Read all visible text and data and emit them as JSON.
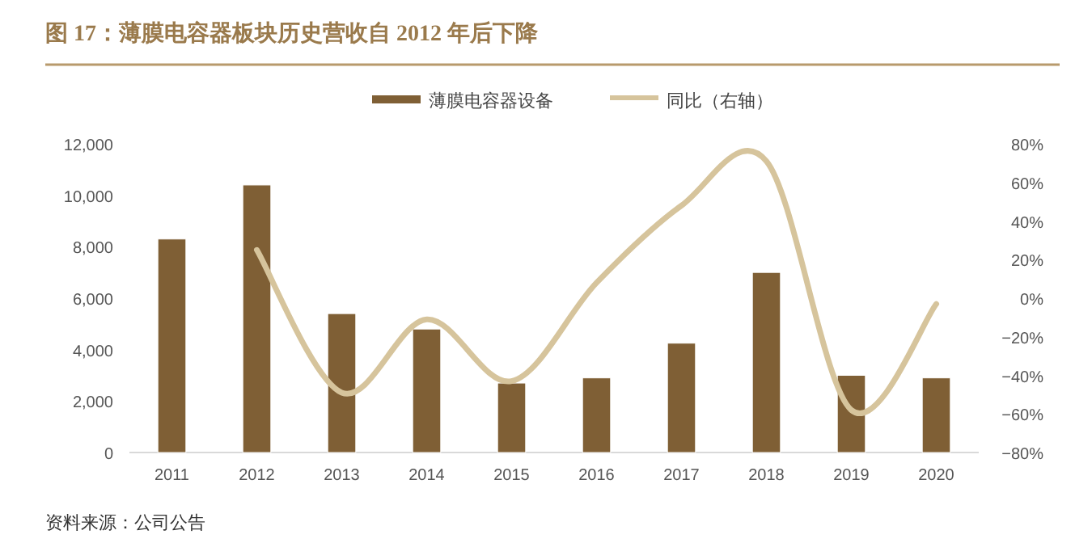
{
  "chart_data": {
    "type": "bar",
    "title": "图 17：薄膜电容器板块历史营收自 2012 年后下降",
    "categories": [
      "2011",
      "2012",
      "2013",
      "2014",
      "2015",
      "2016",
      "2017",
      "2018",
      "2019",
      "2020"
    ],
    "series": [
      {
        "name": "薄膜电容器设备",
        "color": "#7f5f35",
        "values": [
          8300,
          10400,
          5400,
          4800,
          2700,
          2900,
          4250,
          7000,
          3000,
          2900
        ]
      },
      {
        "name": "同比（右轴）",
        "type": "line",
        "axis": "y2",
        "color": "#d6c49c",
        "values": [
          null,
          25,
          -49,
          -11,
          -43,
          8,
          48,
          71,
          -58,
          -3
        ]
      }
    ],
    "ylim": [
      0,
      12000
    ],
    "yticks": [
      {
        "value": 0,
        "label": "0"
      },
      {
        "value": 2000,
        "label": "2,000"
      },
      {
        "value": 4000,
        "label": "4,000"
      },
      {
        "value": 6000,
        "label": "6,000"
      },
      {
        "value": 8000,
        "label": "8,000"
      },
      {
        "value": 10000,
        "label": "10,000"
      },
      {
        "value": 12000,
        "label": "12,000"
      }
    ],
    "y2lim": [
      -80,
      80
    ],
    "y2ticks": [
      {
        "value": -80,
        "label": "−80%"
      },
      {
        "value": -60,
        "label": "−60%"
      },
      {
        "value": -40,
        "label": "−40%"
      },
      {
        "value": -20,
        "label": "−20%"
      },
      {
        "value": 0,
        "label": "0%"
      },
      {
        "value": 20,
        "label": "20%"
      },
      {
        "value": 40,
        "label": "40%"
      },
      {
        "value": 60,
        "label": "60%"
      },
      {
        "value": 80,
        "label": "80%"
      }
    ],
    "legend": "top",
    "grid": false,
    "annotations": [
      "资料来源：公司公告"
    ]
  }
}
